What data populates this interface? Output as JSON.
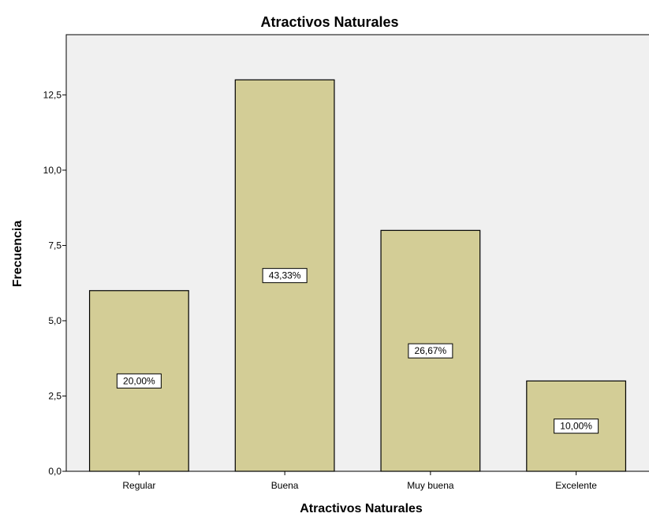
{
  "colors": {
    "plot_background": "#f0f0f0",
    "bar_fill": "#d3cd96",
    "bar_stroke": "#000000",
    "label_box": "#ffffff"
  },
  "chart_data": {
    "type": "bar",
    "title": "Atractivos Naturales",
    "xlabel": "Atractivos Naturales",
    "ylabel": "Frecuencia",
    "categories": [
      "Regular",
      "Buena",
      "Muy buena",
      "Excelente"
    ],
    "values": [
      6,
      13,
      8,
      3
    ],
    "data_labels": [
      "20,00%",
      "43,33%",
      "26,67%",
      "10,00%"
    ],
    "y_ticks": [
      0,
      2.5,
      5,
      7.5,
      10,
      12.5
    ],
    "y_tick_labels": [
      "0,0",
      "2,5",
      "5,0",
      "7,5",
      "10,0",
      "12,5"
    ],
    "ylim": [
      0,
      14.5
    ],
    "grid": false,
    "legend": "none"
  }
}
